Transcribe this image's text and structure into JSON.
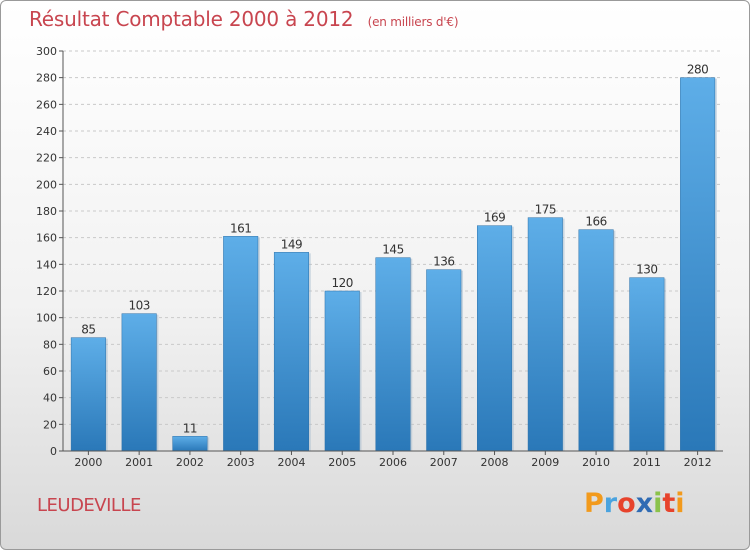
{
  "chart_data": {
    "type": "bar",
    "title": "Résultat Comptable 2000 à 2012",
    "subtitle": "(en milliers d'€)",
    "categories": [
      "2000",
      "2001",
      "2002",
      "2003",
      "2004",
      "2005",
      "2006",
      "2007",
      "2008",
      "2009",
      "2010",
      "2011",
      "2012"
    ],
    "values": [
      85,
      103,
      11,
      161,
      149,
      120,
      145,
      136,
      169,
      175,
      166,
      130,
      280
    ],
    "ylim": [
      0,
      300
    ],
    "yticks": [
      0,
      20,
      40,
      60,
      80,
      100,
      120,
      140,
      160,
      180,
      200,
      220,
      240,
      260,
      280,
      300
    ],
    "grid": true,
    "bar_color": "#3d94d6"
  },
  "place_name": "LEUDEVILLE",
  "logo": {
    "letters": [
      "P",
      "r",
      "o",
      "x",
      "i",
      "t",
      "i"
    ],
    "colors": [
      "#f29a1c",
      "#4aa3df",
      "#e7432c",
      "#2f6bb4",
      "#8bc24a",
      "#e7432c",
      "#f29a1c"
    ]
  }
}
